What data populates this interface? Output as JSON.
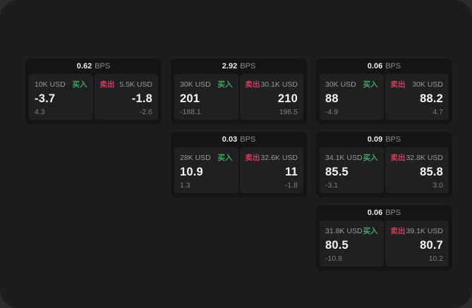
{
  "labels": {
    "bps": "BPS",
    "buy": "买入",
    "sell": "卖出"
  },
  "colors": {
    "backdrop": "#2b2b2c",
    "window": "#1d1d1f",
    "card": "#141416",
    "panel": "#202022",
    "buy": "#3fa564",
    "sell": "#cc3e5e"
  },
  "cards": [
    {
      "spread": "0.62",
      "buy": {
        "size": "10K USD",
        "price": "-3.7",
        "change": "4.3"
      },
      "sell": {
        "size": "5.5K USD",
        "price": "-1.8",
        "change": "-2.6"
      }
    },
    {
      "spread": "2.92",
      "buy": {
        "size": "30K USD",
        "price": "201",
        "change": "-188.1"
      },
      "sell": {
        "size": "30.1K USD",
        "price": "210",
        "change": "196.5"
      }
    },
    {
      "spread": "0.06",
      "buy": {
        "size": "30K USD",
        "price": "88",
        "change": "-4.9"
      },
      "sell": {
        "size": "30K USD",
        "price": "88.2",
        "change": "4.7"
      }
    },
    {
      "spread": "0.03",
      "buy": {
        "size": "28K USD",
        "price": "10.9",
        "change": "1.3"
      },
      "sell": {
        "size": "32.6K USD",
        "price": "11",
        "change": "-1.8"
      }
    },
    {
      "spread": "0.09",
      "buy": {
        "size": "34.1K USD",
        "price": "85.5",
        "change": "-3.1"
      },
      "sell": {
        "size": "32.8K USD",
        "price": "85.8",
        "change": "3.0"
      }
    },
    {
      "spread": "0.06",
      "buy": {
        "size": "31.8K USD",
        "price": "80.5",
        "change": "-10.8"
      },
      "sell": {
        "size": "39.1K USD",
        "price": "80.7",
        "change": "10.2"
      }
    }
  ]
}
